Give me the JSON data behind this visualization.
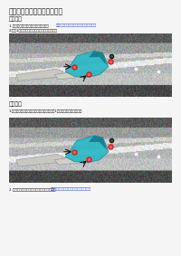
{
  "title": "雨刮电机安装支架总成的更换",
  "section1_title": "拆卸程序",
  "section1_line1a": "1.若下图所示松开所有紧固螺栓，参见 ",
  "section1_line1b": "前雨刮电机安装支架总成松紧螺栓位置图",
  "section1_line2": "2.拆下1个螺栓，拆下雨刮电机安装支架总成。",
  "section2_title": "安装程序",
  "section2_line1": "1.将上雨刮电机安装支架总成安装到位，拧上1个螺栓，并紧固，扭矩：",
  "section2_line2a": "2.将上雨刮电机安装支架总成安装好后，参见 ",
  "section2_line2b": "前雨刮电机安装支架总成松紧螺栓位置图",
  "bg_color": "#f5f5f5",
  "text_color": "#1a1a1a",
  "link_color": "#3355cc",
  "title_fontsize": 5.5,
  "section_fontsize": 4.5,
  "body_fontsize": 3.0,
  "noise_seed": 42
}
